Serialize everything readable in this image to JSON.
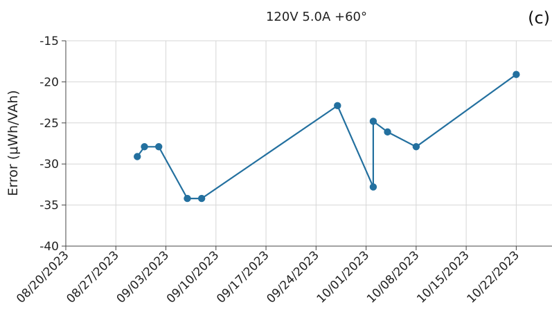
{
  "chart_data": {
    "type": "line",
    "title": "120V 5.0A +60°",
    "panel_label": "(c)",
    "xlabel": "",
    "ylabel": "Error (μWh/VAh)",
    "xlim": [
      "2023-08-20",
      "2023-10-27"
    ],
    "ylim": [
      -40,
      -15
    ],
    "grid": true,
    "legend": "none",
    "color": "#23709f",
    "x_ticks": [
      "08/20/2023",
      "08/27/2023",
      "09/03/2023",
      "09/10/2023",
      "09/17/2023",
      "09/24/2023",
      "10/01/2023",
      "10/08/2023",
      "10/15/2023",
      "10/22/2023"
    ],
    "x_tick_dates": [
      "2023-08-20",
      "2023-08-27",
      "2023-09-03",
      "2023-09-10",
      "2023-09-17",
      "2023-09-24",
      "2023-10-01",
      "2023-10-08",
      "2023-10-15",
      "2023-10-22"
    ],
    "y_ticks": [
      -15,
      -20,
      -25,
      -30,
      -35,
      -40
    ],
    "series": [
      {
        "x": [
          "2023-08-30",
          "2023-08-31",
          "2023-09-02",
          "2023-09-06",
          "2023-09-08",
          "2023-09-27",
          "2023-10-02",
          "2023-10-02",
          "2023-10-04",
          "2023-10-08",
          "2023-10-22"
        ],
        "y": [
          -29.1,
          -27.9,
          -27.9,
          -34.2,
          -34.2,
          -22.9,
          -32.8,
          -24.8,
          -26.1,
          -27.9,
          -19.1
        ]
      }
    ]
  }
}
